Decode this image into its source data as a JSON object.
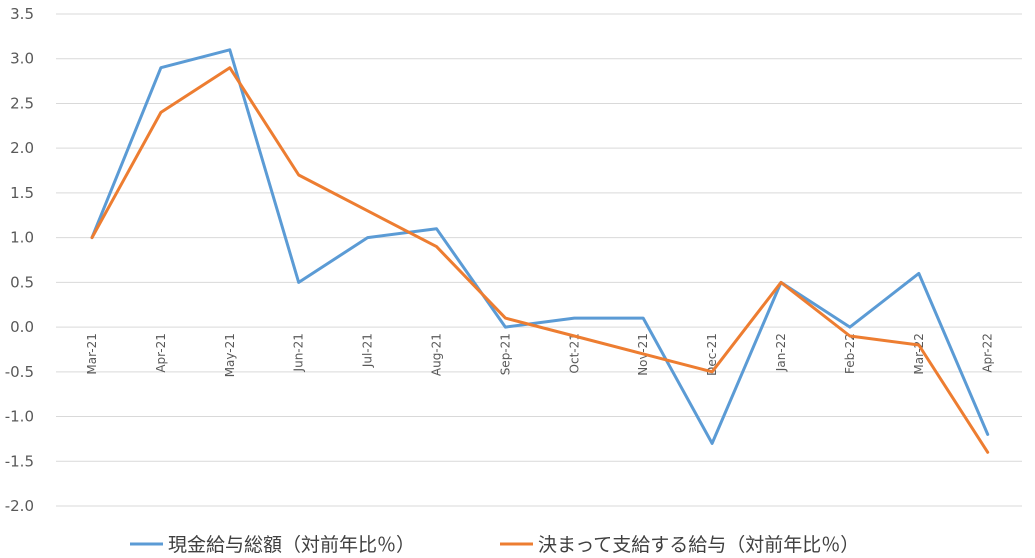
{
  "chart_data": {
    "type": "line",
    "categories": [
      "Mar-21",
      "Apr-21",
      "May-21",
      "Jun-21",
      "Jul-21",
      "Aug-21",
      "Sep-21",
      "Oct-21",
      "Nov-21",
      "Dec-21",
      "Jan-22",
      "Feb-22",
      "Mar-22",
      "Apr-22"
    ],
    "series": [
      {
        "name": "現金給与総額（対前年比％）",
        "color": "#5B9BD5",
        "values": [
          1.0,
          2.9,
          3.1,
          0.5,
          1.0,
          1.1,
          0.0,
          0.1,
          0.1,
          -1.3,
          0.5,
          0.0,
          0.6,
          -1.2
        ]
      },
      {
        "name": "決まって支給する給与（対前年比％）",
        "color": "#ED7D31",
        "values": [
          1.0,
          2.4,
          2.9,
          1.7,
          1.3,
          0.9,
          0.1,
          -0.1,
          -0.3,
          -0.5,
          0.5,
          -0.1,
          -0.2,
          -1.4
        ]
      }
    ],
    "yticks": [
      "3.5",
      "3.0",
      "2.5",
      "2.0",
      "1.5",
      "1.0",
      "0.5",
      "0.0",
      "-0.5",
      "-1.0",
      "-1.5",
      "-2.0"
    ],
    "ylim": [
      -2.0,
      3.5
    ],
    "grid": true,
    "legend_position": "bottom",
    "title": "",
    "xlabel": "",
    "ylabel": ""
  }
}
